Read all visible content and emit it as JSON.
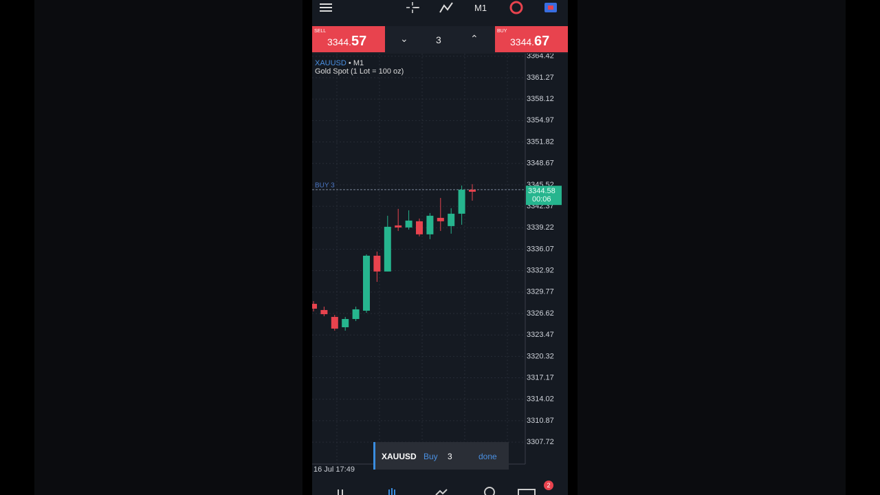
{
  "toolbar": {
    "timeframe": "M1"
  },
  "quotes": {
    "sell": {
      "label": "SELL",
      "price_main": "3344.",
      "price_big": "57"
    },
    "lot": "3",
    "buy": {
      "label": "BUY",
      "price_main": "3344.",
      "price_big": "67"
    }
  },
  "chart_data": {
    "type": "candlestick",
    "symbol": "XAUUSD",
    "timeframe": "• M1",
    "subtitle": "Gold Spot (1 Lot = 100 oz)",
    "ylim": [
      3304.5,
      3364.8
    ],
    "yticks": [
      3364.42,
      3361.27,
      3358.12,
      3354.97,
      3351.82,
      3348.67,
      3345.52,
      3342.37,
      3339.22,
      3336.07,
      3332.92,
      3329.77,
      3326.62,
      3323.47,
      3320.32,
      3317.17,
      3314.02,
      3310.87,
      3307.72
    ],
    "up_color": "#26b58e",
    "down_color": "#e8434e",
    "candles": [
      {
        "open": 3328.04,
        "high": 3328.44,
        "low": 3326.92,
        "close": 3327.33
      },
      {
        "open": 3327.13,
        "high": 3327.63,
        "low": 3326.22,
        "close": 3326.52
      },
      {
        "open": 3326.12,
        "high": 3326.42,
        "low": 3324.1,
        "close": 3324.4
      },
      {
        "open": 3324.6,
        "high": 3326.12,
        "low": 3324.1,
        "close": 3325.81
      },
      {
        "open": 3325.81,
        "high": 3327.63,
        "low": 3325.51,
        "close": 3327.23
      },
      {
        "open": 3327.03,
        "high": 3335.31,
        "low": 3326.72,
        "close": 3335.11
      },
      {
        "open": 3335.11,
        "high": 3335.72,
        "low": 3331.27,
        "close": 3332.79
      },
      {
        "open": 3332.79,
        "high": 3340.98,
        "low": 3332.79,
        "close": 3339.36
      },
      {
        "open": 3339.56,
        "high": 3341.99,
        "low": 3338.75,
        "close": 3339.26
      },
      {
        "open": 3339.26,
        "high": 3341.78,
        "low": 3338.95,
        "close": 3340.27
      },
      {
        "open": 3340.17,
        "high": 3340.57,
        "low": 3337.94,
        "close": 3338.25
      },
      {
        "open": 3338.25,
        "high": 3341.38,
        "low": 3337.54,
        "close": 3340.98
      },
      {
        "open": 3340.67,
        "high": 3343.6,
        "low": 3338.75,
        "close": 3340.17
      },
      {
        "open": 3339.46,
        "high": 3342.09,
        "low": 3338.35,
        "close": 3341.28
      },
      {
        "open": 3341.28,
        "high": 3345.42,
        "low": 3339.66,
        "close": 3344.81
      },
      {
        "open": 3344.81,
        "high": 3345.62,
        "low": 3343.2,
        "close": 3344.51
      }
    ],
    "order_line": {
      "label": "BUY 3",
      "value": 3344.81
    },
    "current_price": {
      "value": 3344.58,
      "timer": "00:06"
    },
    "x_label": "16 Jul 17:49"
  },
  "toast": {
    "symbol": "XAUUSD",
    "side": "Buy",
    "volume": "3",
    "action": "done"
  },
  "badge": "2"
}
